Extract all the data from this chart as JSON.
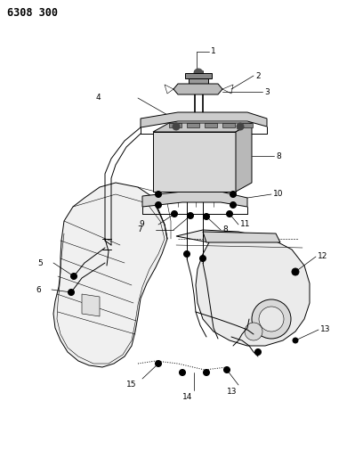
{
  "title": "6308 300",
  "bg": "#ffffff",
  "lc": "#000000",
  "figsize": [
    4.08,
    5.33
  ],
  "dpi": 100,
  "lw": 0.7,
  "lw_thin": 0.4,
  "label_fs": 6.5
}
